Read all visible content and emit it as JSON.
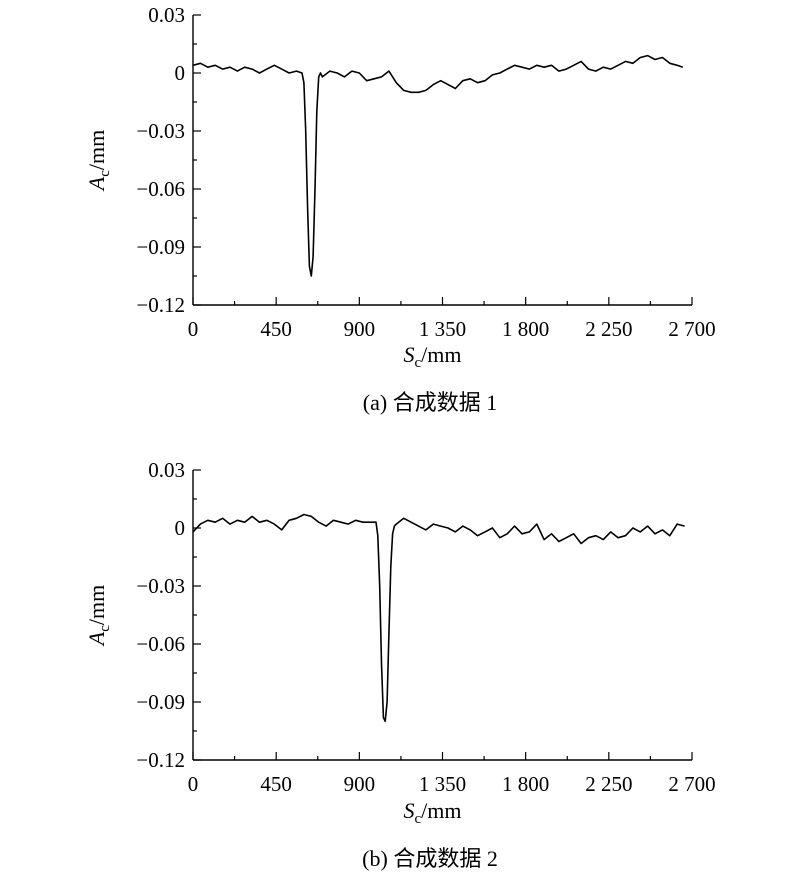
{
  "chart_data": [
    {
      "type": "line",
      "caption": "(a) 合成数据 1",
      "xlabel": {
        "main": "S",
        "sub": "c",
        "unit": "/mm"
      },
      "ylabel": {
        "main": "A",
        "sub": "c",
        "unit": "/mm"
      },
      "xlim": [
        0,
        2700
      ],
      "ylim": [
        -0.12,
        0.03
      ],
      "xticks": [
        0,
        450,
        900,
        1350,
        1800,
        2250,
        2700
      ],
      "xtick_labels": [
        "0",
        "450",
        "900",
        "1 350",
        "1 800",
        "2 250",
        "2 700"
      ],
      "yticks": [
        0.03,
        0,
        -0.03,
        -0.06,
        -0.09,
        -0.12
      ],
      "ytick_labels": [
        "0.03",
        "0",
        "−0.03",
        "−0.06",
        "−0.09",
        "−0.12"
      ],
      "grid": false,
      "series": [
        {
          "x": [
            0,
            40,
            80,
            120,
            160,
            200,
            240,
            280,
            320,
            360,
            400,
            440,
            480,
            520,
            560,
            590,
            600,
            610,
            620,
            630,
            640,
            650,
            660,
            670,
            680,
            690,
            700,
            740,
            780,
            820,
            860,
            900,
            940,
            980,
            1020,
            1060,
            1100,
            1140,
            1180,
            1220,
            1260,
            1300,
            1340,
            1380,
            1420,
            1460,
            1500,
            1540,
            1580,
            1620,
            1660,
            1700,
            1740,
            1780,
            1820,
            1860,
            1900,
            1940,
            1980,
            2020,
            2060,
            2100,
            2140,
            2180,
            2220,
            2260,
            2300,
            2340,
            2380,
            2420,
            2460,
            2500,
            2540,
            2580,
            2620,
            2650
          ],
          "y": [
            0.004,
            0.005,
            0.003,
            0.004,
            0.002,
            0.003,
            0.001,
            0.003,
            0.002,
            0.0,
            0.002,
            0.004,
            0.002,
            0.0,
            0.001,
            0.0,
            -0.005,
            -0.03,
            -0.07,
            -0.1,
            -0.105,
            -0.095,
            -0.06,
            -0.02,
            -0.002,
            0.0,
            -0.002,
            0.001,
            0.0,
            -0.002,
            0.001,
            0.0,
            -0.004,
            -0.003,
            -0.002,
            0.001,
            -0.005,
            -0.009,
            -0.01,
            -0.01,
            -0.009,
            -0.006,
            -0.004,
            -0.006,
            -0.008,
            -0.004,
            -0.003,
            -0.005,
            -0.004,
            -0.001,
            0.0,
            0.002,
            0.004,
            0.003,
            0.002,
            0.004,
            0.003,
            0.004,
            0.001,
            0.002,
            0.004,
            0.006,
            0.002,
            0.001,
            0.003,
            0.002,
            0.004,
            0.006,
            0.005,
            0.008,
            0.009,
            0.007,
            0.008,
            0.005,
            0.004,
            0.003
          ]
        }
      ]
    },
    {
      "type": "line",
      "caption": "(b) 合成数据 2",
      "xlabel": {
        "main": "S",
        "sub": "c",
        "unit": "/mm"
      },
      "ylabel": {
        "main": "A",
        "sub": "c",
        "unit": "/mm"
      },
      "xlim": [
        0,
        2700
      ],
      "ylim": [
        -0.12,
        0.03
      ],
      "xticks": [
        0,
        450,
        900,
        1350,
        1800,
        2250,
        2700
      ],
      "xtick_labels": [
        "0",
        "450",
        "900",
        "1 350",
        "1 800",
        "2 250",
        "2 700"
      ],
      "yticks": [
        0.03,
        0,
        -0.03,
        -0.06,
        -0.09,
        -0.12
      ],
      "ytick_labels": [
        "0.03",
        "0",
        "−0.03",
        "−0.06",
        "−0.09",
        "−0.12"
      ],
      "grid": false,
      "series": [
        {
          "x": [
            0,
            40,
            80,
            120,
            160,
            200,
            240,
            280,
            320,
            360,
            400,
            440,
            480,
            520,
            560,
            600,
            640,
            680,
            720,
            760,
            800,
            840,
            880,
            920,
            960,
            990,
            1000,
            1010,
            1020,
            1030,
            1040,
            1050,
            1060,
            1070,
            1080,
            1090,
            1100,
            1140,
            1180,
            1220,
            1260,
            1300,
            1340,
            1380,
            1420,
            1460,
            1500,
            1540,
            1580,
            1620,
            1660,
            1700,
            1740,
            1780,
            1820,
            1860,
            1900,
            1940,
            1980,
            2020,
            2060,
            2100,
            2140,
            2180,
            2220,
            2260,
            2300,
            2340,
            2380,
            2420,
            2460,
            2500,
            2540,
            2580,
            2620,
            2660
          ],
          "y": [
            -0.002,
            0.002,
            0.004,
            0.003,
            0.005,
            0.002,
            0.004,
            0.003,
            0.006,
            0.003,
            0.004,
            0.002,
            -0.001,
            0.004,
            0.005,
            0.007,
            0.006,
            0.003,
            0.001,
            0.004,
            0.003,
            0.002,
            0.004,
            0.003,
            0.003,
            0.003,
            -0.004,
            -0.03,
            -0.07,
            -0.098,
            -0.1,
            -0.09,
            -0.055,
            -0.02,
            -0.003,
            0.001,
            0.002,
            0.005,
            0.003,
            0.001,
            -0.001,
            0.002,
            0.001,
            0.0,
            -0.002,
            0.001,
            -0.001,
            -0.004,
            -0.002,
            0.0,
            -0.005,
            -0.003,
            0.001,
            -0.003,
            -0.002,
            0.002,
            -0.006,
            -0.003,
            -0.007,
            -0.005,
            -0.003,
            -0.008,
            -0.005,
            -0.004,
            -0.006,
            -0.002,
            -0.005,
            -0.004,
            0.0,
            -0.002,
            0.001,
            -0.003,
            -0.001,
            -0.004,
            0.002,
            0.001
          ]
        }
      ]
    }
  ]
}
